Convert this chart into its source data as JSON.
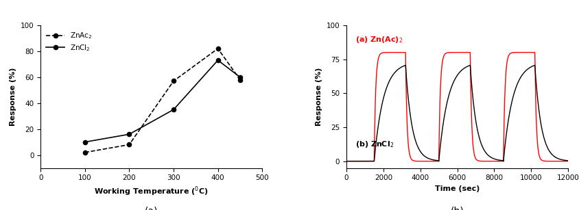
{
  "chart_a": {
    "znac2_x": [
      100,
      200,
      300,
      400,
      450
    ],
    "znac2_y": [
      2,
      8,
      57,
      82,
      58
    ],
    "zncl2_x": [
      100,
      200,
      300,
      400,
      450
    ],
    "zncl2_y": [
      10,
      16,
      35,
      73,
      60
    ],
    "xlabel": "Working Temperature ($^0$C)",
    "ylabel": "Response (%)",
    "xlim": [
      0,
      500
    ],
    "ylim": [
      -10,
      100
    ],
    "xticks": [
      0,
      100,
      200,
      300,
      400,
      500
    ],
    "yticks": [
      0,
      20,
      40,
      60,
      80,
      100
    ],
    "legend_znac2": "ZnAc$_2$",
    "legend_zncl2": "ZnCl$_2$",
    "subtitle": "(a)"
  },
  "chart_b": {
    "num_cycles": 3,
    "start_time": 1500,
    "on_duration": 1700,
    "off_duration": 1800,
    "red_peak": 80,
    "black_peak": 73,
    "red_rise_tau": 80,
    "red_fall_tau": 80,
    "black_rise_tau": 500,
    "black_fall_tau": 350,
    "xlabel": "Time (sec)",
    "ylabel": "Response (%)",
    "xlim": [
      0,
      12000
    ],
    "ylim": [
      -5,
      100
    ],
    "xticks": [
      0,
      2000,
      4000,
      6000,
      8000,
      10000,
      12000
    ],
    "yticks": [
      0,
      25,
      50,
      75,
      100
    ],
    "label_red": "(a) Zn(Ac)$_2$",
    "label_black": "(b) ZnCl$_2$",
    "subtitle": "(b)"
  }
}
